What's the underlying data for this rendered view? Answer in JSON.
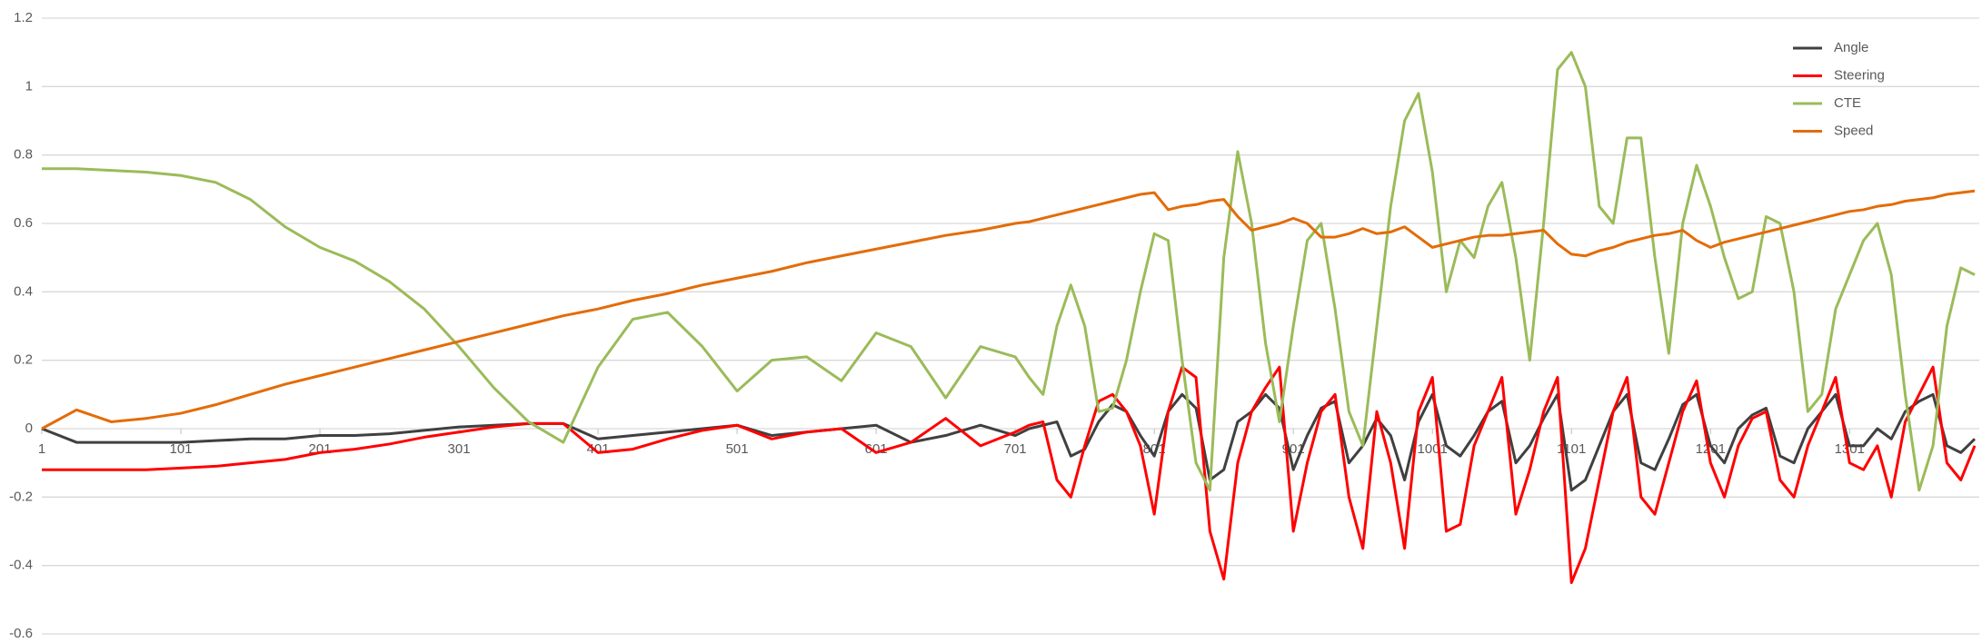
{
  "chart_data": {
    "type": "line",
    "x": [
      1,
      26,
      51,
      76,
      101,
      126,
      151,
      176,
      201,
      226,
      251,
      276,
      301,
      326,
      351,
      376,
      401,
      426,
      451,
      476,
      501,
      526,
      551,
      576,
      601,
      626,
      651,
      676,
      701,
      711,
      721,
      731,
      741,
      751,
      761,
      771,
      781,
      791,
      801,
      811,
      821,
      831,
      841,
      851,
      861,
      871,
      881,
      891,
      901,
      911,
      921,
      931,
      941,
      951,
      961,
      971,
      981,
      991,
      1001,
      1011,
      1021,
      1031,
      1041,
      1051,
      1061,
      1071,
      1081,
      1091,
      1101,
      1111,
      1121,
      1131,
      1141,
      1151,
      1161,
      1171,
      1181,
      1191,
      1201,
      1211,
      1221,
      1231,
      1241,
      1251,
      1261,
      1271,
      1281,
      1291,
      1301,
      1311,
      1321,
      1331,
      1341,
      1351,
      1361,
      1371,
      1381,
      1391
    ],
    "series": [
      {
        "name": "Angle",
        "color": "#404040",
        "values": [
          0,
          -0.04,
          -0.04,
          -0.04,
          -0.04,
          -0.035,
          -0.03,
          -0.03,
          -0.02,
          -0.02,
          -0.015,
          -0.005,
          0.005,
          0.01,
          0.015,
          0.015,
          -0.03,
          -0.02,
          -0.01,
          0,
          0.01,
          -0.02,
          -0.01,
          0,
          0.01,
          -0.04,
          -0.02,
          0.01,
          -0.02,
          0,
          0.01,
          0.02,
          -0.08,
          -0.06,
          0.02,
          0.07,
          0.05,
          -0.02,
          -0.08,
          0.05,
          0.1,
          0.06,
          -0.15,
          -0.12,
          0.02,
          0.05,
          0.1,
          0.06,
          -0.12,
          -0.02,
          0.06,
          0.08,
          -0.1,
          -0.05,
          0.03,
          -0.02,
          -0.15,
          0.02,
          0.1,
          -0.05,
          -0.08,
          -0.02,
          0.05,
          0.08,
          -0.1,
          -0.05,
          0.03,
          0.1,
          -0.18,
          -0.15,
          -0.05,
          0.05,
          0.1,
          -0.1,
          -0.12,
          -0.03,
          0.07,
          0.1,
          -0.05,
          -0.1,
          0,
          0.04,
          0.06,
          -0.08,
          -0.1,
          0,
          0.05,
          0.1,
          -0.05,
          -0.05,
          0,
          -0.03,
          0.05,
          0.08,
          0.1,
          -0.05,
          -0.07,
          -0.03
        ]
      },
      {
        "name": "Steering",
        "color": "#ff0000",
        "values": [
          -0.12,
          -0.12,
          -0.12,
          -0.12,
          -0.115,
          -0.11,
          -0.1,
          -0.09,
          -0.07,
          -0.06,
          -0.045,
          -0.025,
          -0.01,
          0.005,
          0.015,
          0.015,
          -0.07,
          -0.06,
          -0.03,
          -0.005,
          0.01,
          -0.03,
          -0.01,
          0,
          -0.07,
          -0.04,
          0.03,
          -0.05,
          -0.01,
          0.01,
          0.02,
          -0.15,
          -0.2,
          -0.05,
          0.08,
          0.1,
          0.05,
          -0.05,
          -0.25,
          0.05,
          0.18,
          0.15,
          -0.3,
          -0.44,
          -0.1,
          0.05,
          0.12,
          0.18,
          -0.3,
          -0.1,
          0.05,
          0.1,
          -0.2,
          -0.35,
          0.05,
          -0.1,
          -0.35,
          0.05,
          0.15,
          -0.3,
          -0.28,
          -0.05,
          0.05,
          0.15,
          -0.25,
          -0.12,
          0.05,
          0.15,
          -0.45,
          -0.35,
          -0.15,
          0.05,
          0.15,
          -0.2,
          -0.25,
          -0.1,
          0.05,
          0.14,
          -0.1,
          -0.2,
          -0.05,
          0.03,
          0.05,
          -0.15,
          -0.2,
          -0.05,
          0.05,
          0.15,
          -0.1,
          -0.12,
          -0.05,
          -0.2,
          0.02,
          0.1,
          0.18,
          -0.1,
          -0.15,
          -0.05
        ]
      },
      {
        "name": "CTE",
        "color": "#9bbb59",
        "values": [
          0.76,
          0.76,
          0.755,
          0.75,
          0.74,
          0.72,
          0.67,
          0.59,
          0.53,
          0.49,
          0.43,
          0.35,
          0.24,
          0.12,
          0.02,
          -0.04,
          0.18,
          0.32,
          0.34,
          0.24,
          0.11,
          0.2,
          0.21,
          0.14,
          0.28,
          0.24,
          0.09,
          0.24,
          0.21,
          0.15,
          0.1,
          0.3,
          0.42,
          0.3,
          0.05,
          0.06,
          0.2,
          0.4,
          0.57,
          0.55,
          0.2,
          -0.1,
          -0.18,
          0.5,
          0.81,
          0.6,
          0.25,
          0.02,
          0.3,
          0.55,
          0.6,
          0.35,
          0.05,
          -0.05,
          0.3,
          0.65,
          0.9,
          0.98,
          0.75,
          0.4,
          0.55,
          0.5,
          0.65,
          0.72,
          0.5,
          0.2,
          0.6,
          1.05,
          1.1,
          1.0,
          0.65,
          0.6,
          0.85,
          0.85,
          0.5,
          0.22,
          0.6,
          0.77,
          0.65,
          0.5,
          0.38,
          0.4,
          0.62,
          0.6,
          0.4,
          0.05,
          0.1,
          0.35,
          0.45,
          0.55,
          0.6,
          0.45,
          0.1,
          -0.18,
          -0.05,
          0.3,
          0.47,
          0.45
        ]
      },
      {
        "name": "Speed",
        "color": "#e36c09",
        "values": [
          0,
          0.055,
          0.02,
          0.03,
          0.045,
          0.07,
          0.1,
          0.13,
          0.155,
          0.18,
          0.205,
          0.23,
          0.255,
          0.28,
          0.305,
          0.33,
          0.35,
          0.375,
          0.395,
          0.42,
          0.44,
          0.46,
          0.485,
          0.505,
          0.525,
          0.545,
          0.565,
          0.58,
          0.6,
          0.605,
          0.615,
          0.625,
          0.635,
          0.645,
          0.655,
          0.665,
          0.675,
          0.685,
          0.69,
          0.64,
          0.65,
          0.655,
          0.665,
          0.67,
          0.62,
          0.58,
          0.59,
          0.6,
          0.615,
          0.6,
          0.56,
          0.56,
          0.57,
          0.585,
          0.57,
          0.575,
          0.59,
          0.56,
          0.53,
          0.54,
          0.55,
          0.56,
          0.565,
          0.565,
          0.57,
          0.575,
          0.58,
          0.54,
          0.51,
          0.505,
          0.52,
          0.53,
          0.545,
          0.555,
          0.565,
          0.57,
          0.58,
          0.55,
          0.53,
          0.545,
          0.555,
          0.565,
          0.575,
          0.585,
          0.595,
          0.605,
          0.615,
          0.625,
          0.635,
          0.64,
          0.65,
          0.655,
          0.665,
          0.67,
          0.675,
          0.685,
          0.69,
          0.695
        ]
      }
    ],
    "xlim": [
      1,
      1391
    ],
    "xticks": [
      1,
      101,
      201,
      301,
      401,
      501,
      601,
      701,
      801,
      901,
      1001,
      1101,
      1201,
      1301
    ],
    "ylim": [
      -0.6,
      1.2
    ],
    "yticks": [
      -0.6,
      -0.4,
      -0.2,
      0,
      0.2,
      0.4,
      0.6,
      0.8,
      1,
      1.2
    ],
    "grid": true,
    "legend": "upper right"
  }
}
